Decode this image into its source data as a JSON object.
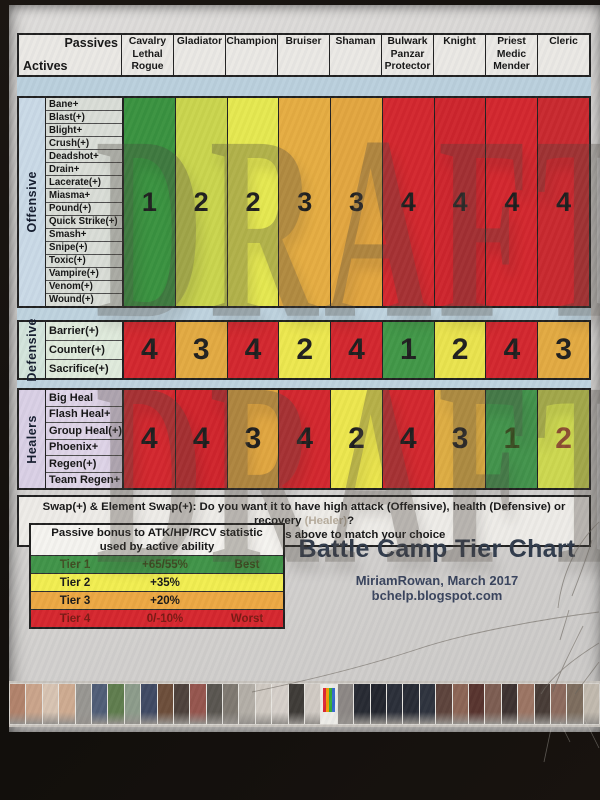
{
  "table": {
    "corner": {
      "passives": "Passives",
      "actives": "Actives"
    },
    "columns": [
      {
        "lines": [
          "Cavalry",
          "Lethal",
          "Rogue"
        ]
      },
      {
        "lines": [
          "Gladiator"
        ]
      },
      {
        "lines": [
          "Champion"
        ]
      },
      {
        "lines": [
          "Bruiser"
        ]
      },
      {
        "lines": [
          "Shaman"
        ]
      },
      {
        "lines": [
          "Bulwark",
          "Panzar",
          "Protector"
        ]
      },
      {
        "lines": [
          "Knight"
        ]
      },
      {
        "lines": [
          "Priest",
          "Medic",
          "Mender"
        ]
      },
      {
        "lines": [
          "Cleric"
        ]
      }
    ],
    "sections": [
      {
        "name": "Offensive",
        "label_bg": "#c9d9e6",
        "row_bg": "#d9ddd6",
        "actives": [
          "Bane+",
          "Blast(+)",
          "Blight+",
          "Crush(+)",
          "Deadshot+",
          "Drain+",
          "Lacerate(+)",
          "Miasma+",
          "Pound(+)",
          "Quick Strike(+)",
          "Smash+",
          "Snipe(+)",
          "Toxic(+)",
          "Vampire(+)",
          "Venom(+)",
          "Wound(+)"
        ],
        "tiers": [
          {
            "value": "1",
            "bg": "#36903c"
          },
          {
            "value": "2",
            "bg": "#c9d44a"
          },
          {
            "value": "2",
            "bg": "#e5e84d"
          },
          {
            "value": "3",
            "bg": "#e5ab3e"
          },
          {
            "value": "3",
            "bg": "#e2a43c"
          },
          {
            "value": "4",
            "bg": "#d2232a"
          },
          {
            "value": "4",
            "bg": "#cd2129"
          },
          {
            "value": "4",
            "bg": "#d2232a"
          },
          {
            "value": "4",
            "bg": "#c8252b"
          }
        ]
      },
      {
        "name": "Defensive",
        "label_bg": "#d2e4da",
        "row_bg": "#dfeadb",
        "actives": [
          "Barrier(+)",
          "Counter(+)",
          "Sacrifice(+)"
        ],
        "tiers": [
          {
            "value": "4",
            "bg": "#d2232a"
          },
          {
            "value": "3",
            "bg": "#e2a83e"
          },
          {
            "value": "4",
            "bg": "#d2232a"
          },
          {
            "value": "2",
            "bg": "#ece74b"
          },
          {
            "value": "4",
            "bg": "#d2232a"
          },
          {
            "value": "1",
            "bg": "#3e9544"
          },
          {
            "value": "2",
            "bg": "#e9e34a"
          },
          {
            "value": "4",
            "bg": "#d2232a"
          },
          {
            "value": "3",
            "bg": "#e2a83e"
          }
        ]
      },
      {
        "name": "Healers",
        "label_bg": "#d9cfe5",
        "row_bg": "#ded3e7",
        "actives": [
          "Big Heal",
          "Flash Heal+",
          "Group Heal(+)",
          "Phoenix+",
          "Regen(+)",
          "Team Regen+"
        ],
        "tiers": [
          {
            "value": "4",
            "bg": "#d2232a"
          },
          {
            "value": "4",
            "bg": "#cf2028"
          },
          {
            "value": "3",
            "bg": "#e0a43c"
          },
          {
            "value": "4",
            "bg": "#d2232a"
          },
          {
            "value": "2",
            "bg": "#ece64a"
          },
          {
            "value": "4",
            "bg": "#d2232a"
          },
          {
            "value": "3",
            "bg": "#ddab3f"
          },
          {
            "value": "1",
            "bg": "#3f9148",
            "fg": "#37491e"
          },
          {
            "value": "2",
            "bg": "#ccd74c",
            "fg": "#8a4a2e"
          }
        ]
      }
    ]
  },
  "note": {
    "line1": "Swap(+) & Element Swap(+): Do you want it to have high attack (Offensive), health (Defensive) or recovery ",
    "line1_faded": "(Healer)",
    "line1_tail": "?",
    "line2": "Find the Tier 1 passives above to match your choice"
  },
  "legend": {
    "title_line1": "Passive bonus to ATK/HP/RCV statistic",
    "title_line2": "used by active ability",
    "rows": [
      {
        "tier": "Tier 1",
        "bonus": "+65/55%",
        "note": "Best",
        "bg": "#3d9245",
        "fg": "#3c4a1e"
      },
      {
        "tier": "Tier 2",
        "bonus": "+35%",
        "note": "",
        "bg": "#f1ed4d",
        "fg": "#141414"
      },
      {
        "tier": "Tier 3",
        "bonus": "+20%",
        "note": "",
        "bg": "#eca63f",
        "fg": "#141414"
      },
      {
        "tier": "Tier 4",
        "bonus": "0/-10%",
        "note": "Worst",
        "bg": "#d5232a",
        "fg": "#77150f"
      }
    ]
  },
  "titleBlock": {
    "title": "Battle Camp Tier Chart",
    "author": "MiriamRowan, March 2017",
    "site": "bchelp.blogspot.com"
  },
  "watermark": {
    "text": "DRAFT",
    "color": "#48423a"
  },
  "filmstrip": {
    "draft_thumb_index": 19,
    "colors": [
      "#b08068",
      "#c9a288",
      "#d6c2b0",
      "#cda98e",
      "#96948f",
      "#4c5a74",
      "#5c7a4a",
      "#8a9a88",
      "#3c4660",
      "#6a4a36",
      "#4a3e38",
      "#93524a",
      "#56524c",
      "#7c766e",
      "#b2ada5",
      "#cec8c0",
      "#d4cec8",
      "#3b3733",
      "#cfc9c2",
      "#ecebe6",
      "#8a8582",
      "#23262e",
      "#1e2129",
      "#272b35",
      "#232730",
      "#2a2f3a",
      "#5a4038",
      "#8a6252",
      "#55302a",
      "#7a5a4e",
      "#3a2e2c",
      "#9a7260",
      "#443832",
      "#8a685a",
      "#7a6a5a",
      "#c0b8ac"
    ]
  }
}
